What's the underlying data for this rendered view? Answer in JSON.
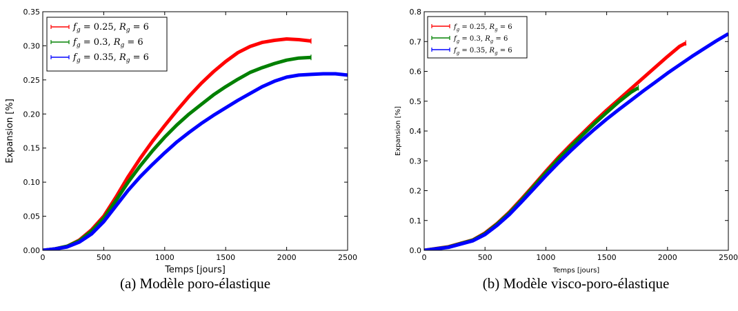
{
  "chart_data": [
    {
      "id": "a",
      "type": "line",
      "caption": "(a) Modèle poro-élastique",
      "xlabel": "Temps [jours]",
      "ylabel": "Expansion [%]",
      "xlim": [
        0,
        2500
      ],
      "ylim": [
        0,
        0.35
      ],
      "xticks": [
        0,
        500,
        1000,
        1500,
        2000,
        2500
      ],
      "yticks": [
        0.0,
        0.05,
        0.1,
        0.15,
        0.2,
        0.25,
        0.3,
        0.35
      ],
      "yticklabels": [
        "0.00",
        "0.05",
        "0.10",
        "0.15",
        "0.20",
        "0.25",
        "0.30",
        "0.35"
      ],
      "grid": false,
      "legend_position": "top-left",
      "series": [
        {
          "name": "f_g = 0.25, R_g = 6",
          "legend_parts": [
            "f",
            "g",
            " = 0.25, ",
            "R",
            "g",
            " = 6"
          ],
          "color": "#ff0000",
          "x": [
            0,
            100,
            200,
            300,
            400,
            500,
            600,
            700,
            800,
            900,
            1000,
            1100,
            1200,
            1300,
            1400,
            1500,
            1600,
            1700,
            1800,
            1900,
            2000,
            2100,
            2200
          ],
          "y": [
            0.0,
            0.002,
            0.006,
            0.015,
            0.03,
            0.05,
            0.078,
            0.108,
            0.135,
            0.16,
            0.183,
            0.205,
            0.226,
            0.245,
            0.262,
            0.277,
            0.29,
            0.299,
            0.305,
            0.308,
            0.31,
            0.309,
            0.307
          ]
        },
        {
          "name": "f_g = 0.3, R_g = 6",
          "legend_parts": [
            "f",
            "g",
            " = 0.3, ",
            "R",
            "g",
            " = 6"
          ],
          "color": "#008000",
          "x": [
            0,
            100,
            200,
            300,
            400,
            500,
            600,
            700,
            800,
            900,
            1000,
            1100,
            1200,
            1300,
            1400,
            1500,
            1600,
            1700,
            1800,
            1900,
            2000,
            2100,
            2200
          ],
          "y": [
            0.0,
            0.002,
            0.006,
            0.014,
            0.028,
            0.047,
            0.073,
            0.1,
            0.124,
            0.146,
            0.166,
            0.184,
            0.2,
            0.214,
            0.228,
            0.24,
            0.251,
            0.261,
            0.268,
            0.274,
            0.279,
            0.282,
            0.283
          ]
        },
        {
          "name": "f_g = 0.35, R_g = 6",
          "legend_parts": [
            "f",
            "g",
            " = 0.35, ",
            "R",
            "g",
            " = 6"
          ],
          "color": "#0000ff",
          "x": [
            0,
            100,
            200,
            300,
            400,
            500,
            600,
            700,
            800,
            900,
            1000,
            1100,
            1200,
            1300,
            1400,
            1500,
            1600,
            1700,
            1800,
            1900,
            2000,
            2100,
            2200,
            2300,
            2400,
            2500
          ],
          "y": [
            0.0,
            0.002,
            0.005,
            0.012,
            0.024,
            0.042,
            0.065,
            0.088,
            0.108,
            0.126,
            0.143,
            0.159,
            0.173,
            0.186,
            0.198,
            0.209,
            0.22,
            0.23,
            0.24,
            0.248,
            0.254,
            0.257,
            0.258,
            0.259,
            0.259,
            0.257
          ]
        }
      ]
    },
    {
      "id": "b",
      "type": "line",
      "caption": "(b) Modèle visco-poro-élastique",
      "xlabel": "Temps [jours]",
      "ylabel": "Expansion [%]",
      "xlim": [
        0,
        2500
      ],
      "ylim": [
        0,
        0.8
      ],
      "xticks": [
        0,
        500,
        1000,
        1500,
        2000,
        2500
      ],
      "yticks": [
        0.0,
        0.1,
        0.2,
        0.3,
        0.4,
        0.5,
        0.6,
        0.7,
        0.8
      ],
      "yticklabels": [
        "0.0",
        "0.1",
        "0.2",
        "0.3",
        "0.4",
        "0.5",
        "0.6",
        "0.7",
        "0.8"
      ],
      "grid": false,
      "legend_position": "top-left",
      "series": [
        {
          "name": "f_g = 0.25, R_g = 6",
          "legend_parts": [
            "f",
            "g",
            " = 0.25, ",
            "R",
            "g",
            " = 6"
          ],
          "color": "#ff0000",
          "x": [
            0,
            200,
            400,
            500,
            600,
            700,
            800,
            900,
            1000,
            1100,
            1200,
            1300,
            1400,
            1500,
            1600,
            1700,
            1800,
            1900,
            2000,
            2100,
            2150
          ],
          "y": [
            0.0,
            0.012,
            0.035,
            0.058,
            0.09,
            0.128,
            0.172,
            0.218,
            0.265,
            0.31,
            0.352,
            0.392,
            0.432,
            0.47,
            0.506,
            0.542,
            0.578,
            0.614,
            0.65,
            0.684,
            0.695
          ]
        },
        {
          "name": "f_g = 0.3, R_g = 6",
          "legend_parts": [
            "f",
            "g",
            " = 0.3, ",
            "R",
            "g",
            " = 6"
          ],
          "color": "#008000",
          "x": [
            0,
            200,
            400,
            500,
            600,
            700,
            800,
            900,
            1000,
            1100,
            1200,
            1300,
            1400,
            1500,
            1600,
            1700,
            1760
          ],
          "y": [
            0.0,
            0.011,
            0.034,
            0.056,
            0.088,
            0.125,
            0.168,
            0.214,
            0.26,
            0.304,
            0.346,
            0.386,
            0.425,
            0.462,
            0.498,
            0.53,
            0.545
          ]
        },
        {
          "name": "f_g = 0.35, R_g = 6",
          "legend_parts": [
            "f",
            "g",
            " = 0.35, ",
            "R",
            "g",
            " = 6"
          ],
          "color": "#0000ff",
          "x": [
            0,
            200,
            400,
            500,
            600,
            700,
            800,
            900,
            1000,
            1100,
            1200,
            1300,
            1400,
            1500,
            1600,
            1700,
            1800,
            1900,
            2000,
            2100,
            2200,
            2300,
            2400,
            2500
          ],
          "y": [
            0.0,
            0.01,
            0.032,
            0.053,
            0.084,
            0.12,
            0.162,
            0.206,
            0.25,
            0.292,
            0.332,
            0.37,
            0.406,
            0.44,
            0.472,
            0.503,
            0.534,
            0.564,
            0.594,
            0.622,
            0.65,
            0.676,
            0.702,
            0.726
          ]
        }
      ]
    }
  ]
}
